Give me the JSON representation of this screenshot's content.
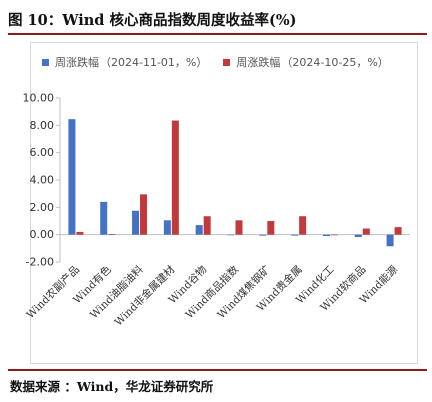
{
  "figure": {
    "title": "图 10：Wind 核心商品指数周度收益率(%)",
    "source": "数据来源 ：Wind，华龙证券研究所"
  },
  "colors": {
    "series_1": "#4472c4",
    "series_2": "#c0393b",
    "accent_rule": "#8b1a1a"
  },
  "chart_data": {
    "type": "bar",
    "categories": [
      "Wind农副产品",
      "Wind有色",
      "Wind油脂油料",
      "Wind非金属建材",
      "Wind谷物",
      "Wind商品指数",
      "Wind煤焦钢矿",
      "Wind贵金属",
      "Wind化工",
      "Wind软商品",
      "Wind能源"
    ],
    "series": [
      {
        "name": "周涨跌幅",
        "period": "（2024-11-01，%）",
        "values": [
          8.45,
          2.4,
          1.75,
          1.05,
          0.7,
          -0.03,
          -0.07,
          -0.07,
          -0.1,
          -0.17,
          -0.85
        ]
      },
      {
        "name": "周涨跌幅",
        "period": "（2024-10-25，%）",
        "values": [
          0.2,
          0.05,
          2.95,
          8.35,
          1.35,
          1.05,
          1.0,
          1.35,
          0.0,
          0.45,
          0.55
        ]
      }
    ],
    "ylim": [
      -2,
      10
    ],
    "yticks": [
      "10.00",
      "8.00",
      "6.00",
      "4.00",
      "2.00",
      "0.00",
      "-2.00"
    ],
    "grid": false,
    "legend": "top-left"
  }
}
